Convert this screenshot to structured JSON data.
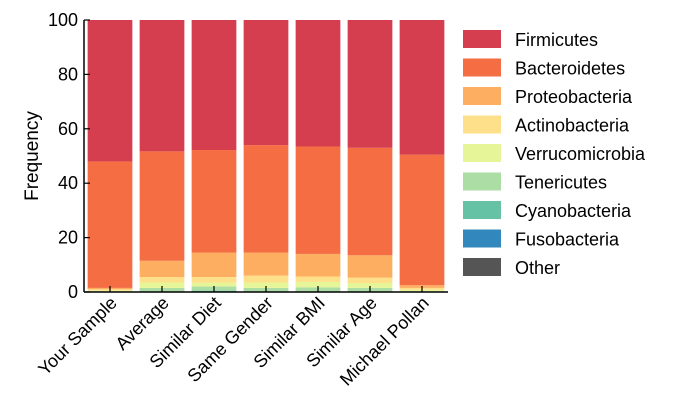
{
  "chart_data": {
    "type": "bar",
    "stacked": true,
    "ylabel": "Frequency",
    "ylim": [
      0,
      100
    ],
    "yticks": [
      0,
      20,
      40,
      60,
      80,
      100
    ],
    "categories": [
      "Your Sample",
      "Average",
      "Similar Diet",
      "Same Gender",
      "Similar BMI",
      "Similar Age",
      "Michael Pollan"
    ],
    "legend_position": "right",
    "series": [
      {
        "name": "Other",
        "color": "#555555",
        "values": [
          0,
          0,
          0,
          0,
          0,
          0,
          0
        ]
      },
      {
        "name": "Fusobacteria",
        "color": "#3288bd",
        "values": [
          0,
          0,
          0,
          0,
          0,
          0,
          0
        ]
      },
      {
        "name": "Cyanobacteria",
        "color": "#66c2a5",
        "values": [
          0,
          0.3,
          0.5,
          0.3,
          0.3,
          0.3,
          0
        ]
      },
      {
        "name": "Tenericutes",
        "color": "#abdda4",
        "values": [
          0.2,
          1.2,
          1.5,
          1.2,
          1.4,
          1.2,
          0.3
        ]
      },
      {
        "name": "Verrucomicrobia",
        "color": "#e6f598",
        "values": [
          0.3,
          2.0,
          1.5,
          2.0,
          2.0,
          1.8,
          0.5
        ]
      },
      {
        "name": "Actinobacteria",
        "color": "#fee08b",
        "values": [
          0.5,
          2.0,
          2.0,
          2.5,
          2.0,
          2.0,
          0.7
        ]
      },
      {
        "name": "Proteobacteria",
        "color": "#fdae61",
        "values": [
          0.5,
          6.0,
          9.0,
          8.5,
          8.3,
          8.2,
          1.0
        ]
      },
      {
        "name": "Bacteroidetes",
        "color": "#f46d43",
        "values": [
          46.5,
          40.2,
          37.7,
          39.5,
          39.5,
          39.5,
          48.0
        ]
      },
      {
        "name": "Firmicutes",
        "color": "#d53e4f",
        "values": [
          52.0,
          48.3,
          47.8,
          46.0,
          46.5,
          47.0,
          49.5
        ]
      }
    ],
    "legend_order": [
      "Firmicutes",
      "Bacteroidetes",
      "Proteobacteria",
      "Actinobacteria",
      "Verrucomicrobia",
      "Tenericutes",
      "Cyanobacteria",
      "Fusobacteria",
      "Other"
    ]
  }
}
